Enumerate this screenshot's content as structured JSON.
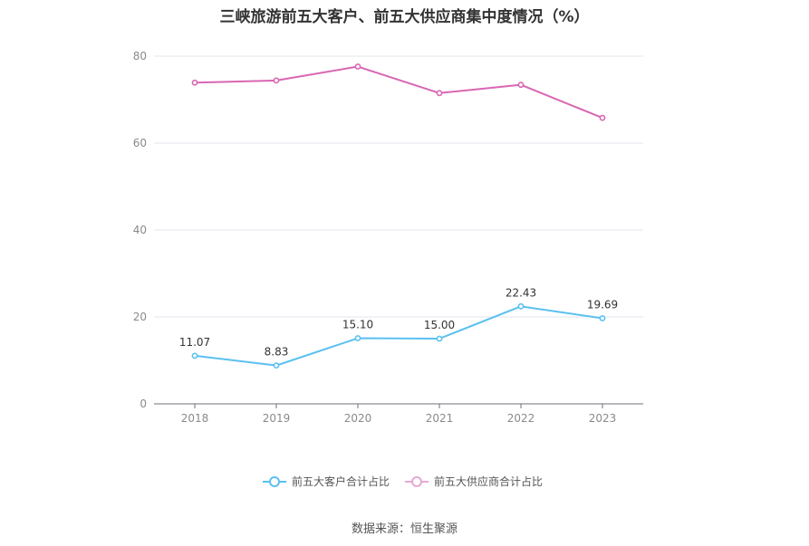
{
  "chart_data": {
    "type": "line",
    "title": "三峡旅游前五大客户、前五大供应商集中度情况（%）",
    "categories": [
      "2018",
      "2019",
      "2020",
      "2021",
      "2022",
      "2023"
    ],
    "series": [
      {
        "name": "前五大客户合计占比",
        "values": [
          11.07,
          8.83,
          15.1,
          15.0,
          22.43,
          19.69
        ],
        "labels": [
          "11.07",
          "8.83",
          "15.10",
          "15.00",
          "22.43",
          "19.69"
        ],
        "color": "#5bc0f0",
        "show_labels": true
      },
      {
        "name": "前五大供应商合计占比",
        "values": [
          73.9,
          74.4,
          77.6,
          71.5,
          73.4,
          65.8
        ],
        "color": "#d966b3",
        "show_labels": false
      }
    ],
    "y_ticks": [
      "0",
      "20",
      "40",
      "60",
      "80"
    ],
    "ylim": [
      0,
      80
    ],
    "grid": true,
    "legend_position": "bottom-center",
    "source": "数据来源：恒生聚源"
  }
}
